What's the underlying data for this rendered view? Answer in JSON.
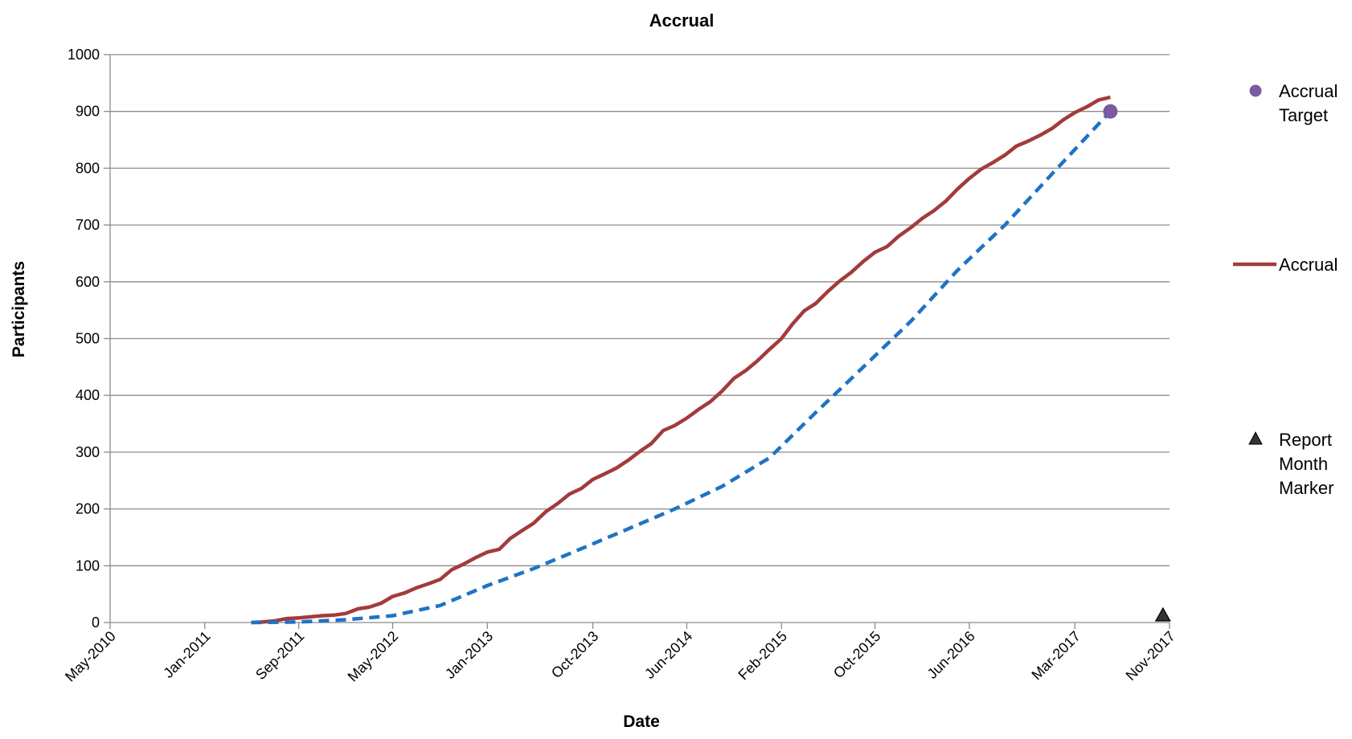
{
  "chart_data": {
    "type": "line",
    "title": "Accrual",
    "xlabel": "Date",
    "ylabel": "Participants",
    "ylim": [
      0,
      1000
    ],
    "y_ticks": [
      0,
      100,
      200,
      300,
      400,
      500,
      600,
      700,
      800,
      900,
      1000
    ],
    "x_range": [
      "2010-05-01",
      "2017-11-01"
    ],
    "x_ticks": [
      {
        "label": "May-2010",
        "date": "2010-05-01"
      },
      {
        "label": "Jan-2011",
        "date": "2011-01-01"
      },
      {
        "label": "Sep-2011",
        "date": "2011-09-01"
      },
      {
        "label": "May-2012",
        "date": "2012-05-01"
      },
      {
        "label": "Jan-2013",
        "date": "2013-01-01"
      },
      {
        "label": "Oct-2013",
        "date": "2013-10-01"
      },
      {
        "label": "Jun-2014",
        "date": "2014-06-01"
      },
      {
        "label": "Feb-2015",
        "date": "2015-02-01"
      },
      {
        "label": "Oct-2015",
        "date": "2015-10-01"
      },
      {
        "label": "Jun-2016",
        "date": "2016-06-01"
      },
      {
        "label": "Mar-2017",
        "date": "2017-03-01"
      },
      {
        "label": "Nov-2017",
        "date": "2017-11-01"
      }
    ],
    "grid": true,
    "legend_position": "right",
    "series": [
      {
        "name": "Accrual",
        "color": "#a33b3b",
        "style": "solid",
        "points": [
          [
            "2011-05-01",
            0
          ],
          [
            "2011-06-01",
            1
          ],
          [
            "2011-07-01",
            3
          ],
          [
            "2011-08-01",
            7
          ],
          [
            "2011-09-01",
            8
          ],
          [
            "2011-10-01",
            10
          ],
          [
            "2011-11-01",
            12
          ],
          [
            "2011-12-01",
            13
          ],
          [
            "2012-01-01",
            16
          ],
          [
            "2012-02-01",
            24
          ],
          [
            "2012-03-01",
            27
          ],
          [
            "2012-04-01",
            34
          ],
          [
            "2012-05-01",
            46
          ],
          [
            "2012-06-01",
            52
          ],
          [
            "2012-07-01",
            61
          ],
          [
            "2012-08-01",
            68
          ],
          [
            "2012-09-01",
            76
          ],
          [
            "2012-10-01",
            93
          ],
          [
            "2012-11-01",
            103
          ],
          [
            "2012-12-01",
            114
          ],
          [
            "2013-01-01",
            124
          ],
          [
            "2013-02-01",
            129
          ],
          [
            "2013-03-01",
            148
          ],
          [
            "2013-04-01",
            162
          ],
          [
            "2013-05-01",
            175
          ],
          [
            "2013-06-01",
            195
          ],
          [
            "2013-07-01",
            209
          ],
          [
            "2013-08-01",
            226
          ],
          [
            "2013-09-01",
            236
          ],
          [
            "2013-10-01",
            252
          ],
          [
            "2013-11-01",
            262
          ],
          [
            "2013-12-01",
            272
          ],
          [
            "2014-01-01",
            286
          ],
          [
            "2014-02-01",
            302
          ],
          [
            "2014-03-01",
            315
          ],
          [
            "2014-04-01",
            338
          ],
          [
            "2014-05-01",
            347
          ],
          [
            "2014-06-01",
            360
          ],
          [
            "2014-07-01",
            375
          ],
          [
            "2014-08-01",
            389
          ],
          [
            "2014-09-01",
            408
          ],
          [
            "2014-10-01",
            430
          ],
          [
            "2014-11-01",
            444
          ],
          [
            "2014-12-01",
            461
          ],
          [
            "2015-01-01",
            481
          ],
          [
            "2015-02-01",
            500
          ],
          [
            "2015-03-01",
            525
          ],
          [
            "2015-04-01",
            549
          ],
          [
            "2015-05-01",
            562
          ],
          [
            "2015-06-01",
            583
          ],
          [
            "2015-07-01",
            601
          ],
          [
            "2015-08-01",
            617
          ],
          [
            "2015-09-01",
            636
          ],
          [
            "2015-10-01",
            652
          ],
          [
            "2015-11-01",
            662
          ],
          [
            "2015-12-01",
            680
          ],
          [
            "2016-01-01",
            695
          ],
          [
            "2016-02-01",
            712
          ],
          [
            "2016-03-01",
            725
          ],
          [
            "2016-04-01",
            742
          ],
          [
            "2016-05-01",
            763
          ],
          [
            "2016-06-01",
            782
          ],
          [
            "2016-07-01",
            798
          ],
          [
            "2016-08-01",
            810
          ],
          [
            "2016-09-01",
            823
          ],
          [
            "2016-10-01",
            839
          ],
          [
            "2016-11-01",
            848
          ],
          [
            "2016-12-01",
            858
          ],
          [
            "2017-01-01",
            870
          ],
          [
            "2017-02-01",
            886
          ],
          [
            "2017-03-01",
            898
          ],
          [
            "2017-04-01",
            908
          ],
          [
            "2017-05-01",
            920
          ],
          [
            "2017-06-01",
            925
          ]
        ]
      },
      {
        "name": "",
        "color": "#1f73c6",
        "style": "dashed",
        "points": [
          [
            "2011-05-01",
            0
          ],
          [
            "2011-09-01",
            1
          ],
          [
            "2012-01-01",
            5
          ],
          [
            "2012-05-01",
            12
          ],
          [
            "2012-09-01",
            30
          ],
          [
            "2013-01-01",
            65
          ],
          [
            "2013-05-01",
            95
          ],
          [
            "2013-09-01",
            130
          ],
          [
            "2014-01-01",
            165
          ],
          [
            "2014-05-01",
            200
          ],
          [
            "2014-09-01",
            240
          ],
          [
            "2015-01-01",
            290
          ],
          [
            "2015-05-01",
            370
          ],
          [
            "2015-09-01",
            450
          ],
          [
            "2016-01-01",
            530
          ],
          [
            "2016-05-01",
            620
          ],
          [
            "2016-09-01",
            700
          ],
          [
            "2017-01-01",
            790
          ],
          [
            "2017-06-01",
            900
          ]
        ]
      }
    ],
    "markers": [
      {
        "name": "Accrual Target",
        "date": "2017-06-01",
        "value": 900,
        "shape": "circle",
        "color": "#7a5aa0"
      },
      {
        "name": "Report Month Marker",
        "date": "2017-10-15",
        "value": 0,
        "shape": "triangle",
        "color": "#333333"
      }
    ],
    "legend": [
      {
        "label_lines": [
          "Accrual",
          "Target"
        ],
        "shape": "circle",
        "color": "#7a5aa0"
      },
      {
        "label_lines": [
          "Accrual"
        ],
        "shape": "line",
        "color": "#a33b3b"
      },
      {
        "label_lines": [
          "Report",
          "Month",
          "Marker"
        ],
        "shape": "triangle",
        "color": "#333333"
      }
    ]
  }
}
